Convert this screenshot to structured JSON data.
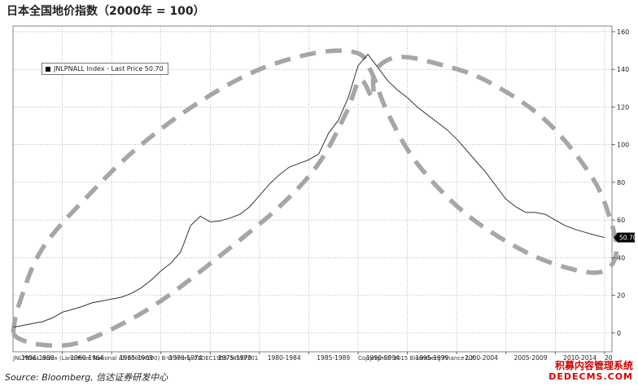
{
  "title": "日本全国地价指数（2000年 = 100）",
  "legend": {
    "label": "JNLPNALL Index - Last Price 50.70"
  },
  "last_price_tag": "50.70",
  "footer_left": "JNLPNALL Index (Land Price National All 2000=100) B-W  Yearly 31DEC1955-30SEP201",
  "footer_right": "Copyright© 2015 Bloomberg Finance L.P.",
  "source": "Source: Bloomberg, 信达证券研发中心",
  "watermark": {
    "line1": "积募内容管理系统",
    "line2": "DEDECMS.COM"
  },
  "colors": {
    "line": "#333333",
    "grid": "#888888",
    "annotation": "#a6a6a6",
    "watermark": "#d40000"
  },
  "chart_data": {
    "type": "line",
    "title": "日本全国地价指数（2000年 = 100）",
    "xlabel": "",
    "ylabel": "",
    "ylim": [
      -10,
      163
    ],
    "y_axis_position": "right",
    "yticks": [
      0,
      20,
      40,
      60,
      80,
      100,
      120,
      140,
      160
    ],
    "categories": [
      "1956-1959",
      "1960-1964",
      "1965-1969",
      "1970-1974",
      "1975-1979",
      "1980-1984",
      "1985-1989",
      "1990-1994",
      "1995-1999",
      "2000-2004",
      "2005-2009",
      "2010-2014",
      "20"
    ],
    "xlim": [
      1955,
      2015.75
    ],
    "grid": true,
    "legend_position": "top-left",
    "series": [
      {
        "name": "JNLPNALL Index - Last Price 50.70",
        "x": [
          1955,
          1956,
          1957,
          1958,
          1959,
          1960,
          1961,
          1962,
          1963,
          1964,
          1965,
          1966,
          1967,
          1968,
          1969,
          1970,
          1971,
          1972,
          1973,
          1974,
          1975,
          1976,
          1977,
          1978,
          1979,
          1980,
          1981,
          1982,
          1983,
          1984,
          1985,
          1986,
          1987,
          1988,
          1989,
          1990,
          1991,
          1992,
          1993,
          1994,
          1995,
          1996,
          1997,
          1998,
          1999,
          2000,
          2001,
          2002,
          2003,
          2004,
          2005,
          2006,
          2007,
          2008,
          2009,
          2010,
          2011,
          2012,
          2013,
          2014,
          2015
        ],
        "values": [
          3,
          4,
          5,
          6,
          8,
          11,
          12.5,
          14,
          16,
          17,
          18,
          19,
          21,
          24,
          28,
          33,
          37,
          43,
          57,
          62,
          59,
          59.5,
          61,
          63,
          67,
          73,
          79,
          84,
          88,
          90,
          92,
          95,
          106,
          113,
          125,
          142,
          148,
          141,
          134,
          129,
          125,
          120,
          116,
          112,
          108,
          103,
          97,
          91,
          85,
          78,
          71,
          67,
          64,
          64,
          63,
          60,
          57,
          55,
          53.5,
          52,
          50.7
        ]
      }
    ],
    "annotations": [
      {
        "type": "dashed-loop",
        "description": "upper envelope of the rise",
        "points": [
          [
            1955,
            0
          ],
          [
            1955.6,
            15
          ],
          [
            1958,
            45
          ],
          [
            1963,
            75
          ],
          [
            1968,
            100
          ],
          [
            1974,
            123
          ],
          [
            1980,
            140
          ],
          [
            1986,
            149
          ],
          [
            1990,
            148.5
          ],
          [
            1991.4,
            138
          ],
          [
            1993,
            117
          ],
          [
            1996,
            90
          ],
          [
            2001,
            63
          ],
          [
            2007,
            43
          ],
          [
            2012,
            33.5
          ],
          [
            2015,
            33
          ],
          [
            2016.2,
            43
          ],
          [
            2015.6,
            60
          ],
          [
            2013.7,
            83
          ],
          [
            2009,
            113
          ],
          [
            2003,
            134
          ],
          [
            1998,
            143
          ],
          [
            1994,
            146.5
          ],
          [
            1991.7,
            139
          ],
          [
            1991.5,
            125
          ],
          [
            1990.2,
            134.5
          ],
          [
            1988.8,
            117
          ],
          [
            1986,
            90
          ],
          [
            1982,
            67
          ],
          [
            1976,
            41
          ],
          [
            1970,
            17
          ],
          [
            1965,
            2
          ],
          [
            1961,
            -6
          ],
          [
            1957.5,
            -6
          ],
          [
            1955.6,
            -3
          ],
          [
            1955,
            0
          ]
        ]
      }
    ]
  }
}
